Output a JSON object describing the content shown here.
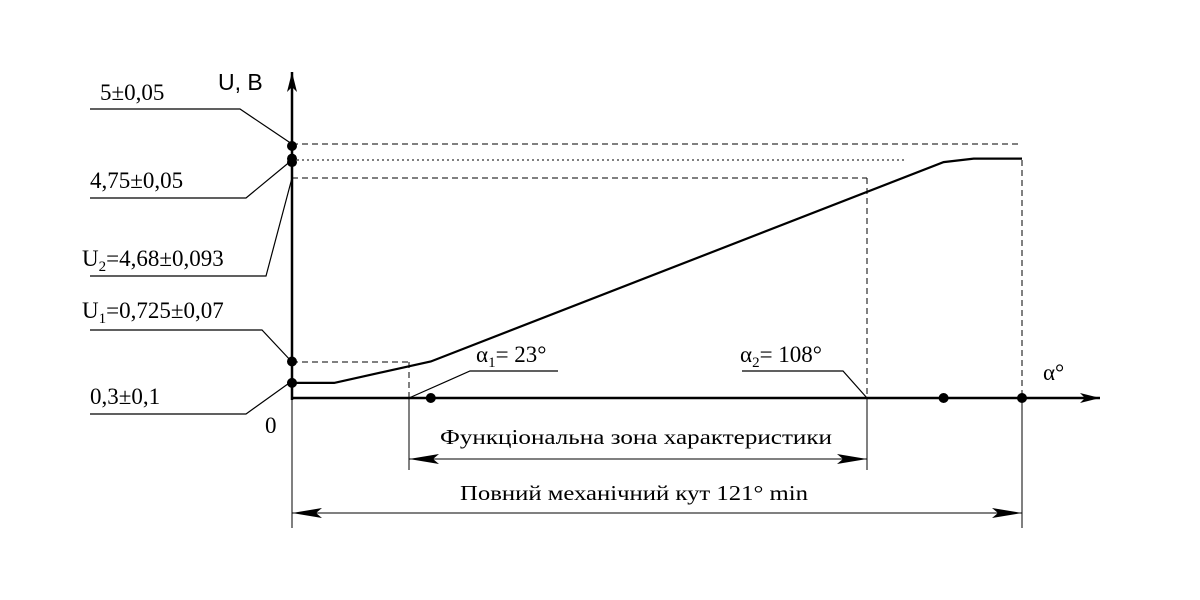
{
  "axes": {
    "y_label": "U, В",
    "x_label": "α°",
    "origin_label": "0"
  },
  "labels": {
    "u_max": "5±0,05",
    "u_sat": "4,75±0,05",
    "u2": {
      "prefix": "U",
      "sub": "2",
      "rest": "=4,68±0,093"
    },
    "u1": {
      "prefix": "U",
      "sub": "1",
      "rest": "=0,725±0,07"
    },
    "u_min": "0,3±0,1",
    "alpha1": {
      "prefix": "α",
      "sub": "1",
      "rest": "= 23°"
    },
    "alpha2": {
      "prefix": "α",
      "sub": "2",
      "rest": "= 108°"
    }
  },
  "dimensions": {
    "functional_zone": "Функціональна зона характеристики",
    "full_angle": "Повний механічний кут 121° min"
  },
  "chart_data": {
    "type": "line",
    "series": [
      {
        "x": [
          0,
          7,
          23,
          108,
          113,
          121
        ],
        "y": [
          0.3,
          0.3,
          0.725,
          4.68,
          4.75,
          4.75
        ]
      }
    ],
    "markers_y": [
      0.3,
      0.725,
      4.68,
      4.75,
      5.0
    ],
    "markers_x": [
      23,
      108,
      121
    ]
  }
}
